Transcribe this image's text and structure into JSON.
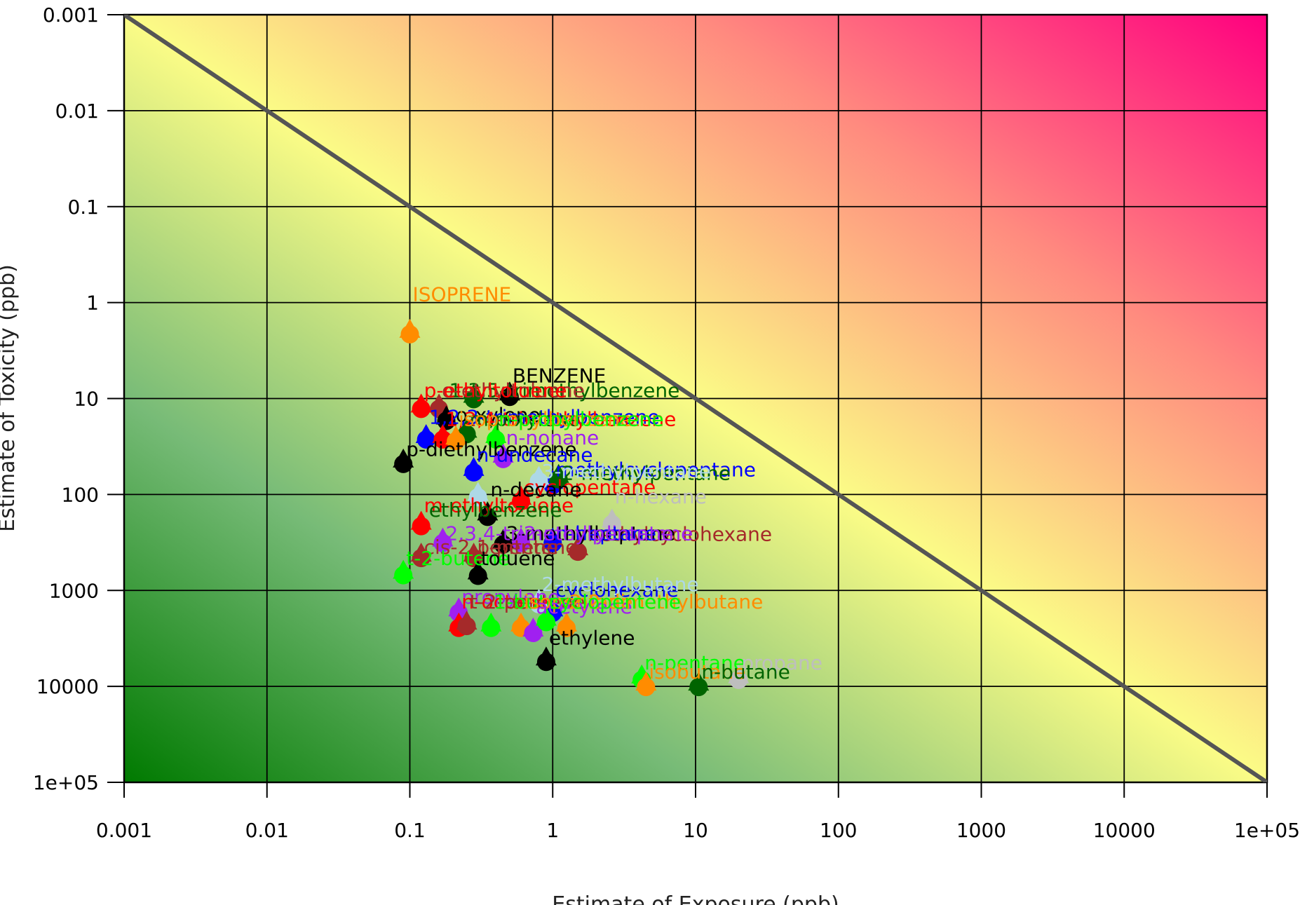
{
  "chart_data": {
    "type": "scatter",
    "xlabel": "Estimate of Exposure (ppb)",
    "ylabel": "Estimate of Toxicity (ppb)",
    "x_scale": "log",
    "y_scale": "log",
    "y_inverted": true,
    "xlim": [
      0.001,
      100000
    ],
    "ylim": [
      0.001,
      100000
    ],
    "x_ticks": [
      "0.001",
      "0.01",
      "0.1",
      "1",
      "10",
      "100",
      "1000",
      "10000",
      "1e+05"
    ],
    "y_ticks": [
      "0.001",
      "0.01",
      "0.1",
      "1",
      "10",
      "100",
      "1000",
      "10000",
      "1e+05"
    ],
    "grid": true,
    "background": "green (bottom-left) to yellow to magenta (top-right) gradient",
    "colors": {
      "low": "#007a00",
      "mid": "#fbfc86",
      "high": "#ff007f",
      "reference_line": "#555555"
    },
    "reference_line": {
      "from": [
        0.001,
        0.001
      ],
      "to": [
        100000,
        100000
      ]
    },
    "points": [
      {
        "label": "ISOPRENE",
        "x": 0.1,
        "y": 2.0,
        "color": "#ff8c00"
      },
      {
        "label": "BENZENE",
        "x": 0.5,
        "y": 9.0,
        "color": "#000000"
      },
      {
        "label": "1,3,5-trimethylbenzene",
        "x": 0.28,
        "y": 9.5,
        "color": "#006400"
      },
      {
        "label": "o-ethyltoluene",
        "x": 0.16,
        "y": 12.0,
        "color": "#a52a2a"
      },
      {
        "label": "p-ethyltoluene",
        "x": 0.12,
        "y": 12.0,
        "color": "#ff0000"
      },
      {
        "label": "o-xylene",
        "x": 0.18,
        "y": 16.0,
        "color": "#000000"
      },
      {
        "label": "1,2,3-trimethylbenzene",
        "x": 0.13,
        "y": 25.0,
        "color": "#0000ff"
      },
      {
        "label": "1,2,4-trimethylbenzene",
        "x": 0.17,
        "y": 25.0,
        "color": "#ff0000"
      },
      {
        "label": "m,p-xylene",
        "x": 0.25,
        "y": 22.0,
        "color": "#006400"
      },
      {
        "label": "isopropylbenzene",
        "x": 0.21,
        "y": 26.0,
        "color": "#ff8c00"
      },
      {
        "label": "n-propylbenzene",
        "x": 0.4,
        "y": 25.0,
        "color": "#00ff00"
      },
      {
        "label": "n-nonane",
        "x": 0.45,
        "y": 40.0,
        "color": "#a020f0"
      },
      {
        "label": "p-diethylbenzene",
        "x": 0.09,
        "y": 45.0,
        "color": "#000000"
      },
      {
        "label": "n-undecane",
        "x": 0.28,
        "y": 55.0,
        "color": "#0000ff"
      },
      {
        "label": "methylcyclopentane",
        "x": 1.0,
        "y": 75.0,
        "color": "#0000ff"
      },
      {
        "label": "2-methylpentane",
        "x": 1.1,
        "y": 65.0,
        "color": "#006400"
      },
      {
        "label": "3-methylpentane",
        "x": 0.8,
        "y": 68.0,
        "color": "#add8e6"
      },
      {
        "label": "cyclopentane",
        "x": 0.6,
        "y": 110.0,
        "color": "#ff0000"
      },
      {
        "label": "n-decane",
        "x": 0.3,
        "y": 100.0,
        "color": "#add8e6"
      },
      {
        "label": "n-hexane",
        "x": 2.6,
        "y": 190.0,
        "color": "#bebebe"
      },
      {
        "label": "m-ethyltoluene",
        "x": 0.12,
        "y": 200.0,
        "color": "#ff0000"
      },
      {
        "label": "ethylbenzene",
        "x": 0.35,
        "y": 160.0,
        "color": "#000000"
      },
      {
        "label": "methylcyclohexane",
        "x": 1.5,
        "y": 370.0,
        "color": "#a52a2a"
      },
      {
        "label": "2-methylheptane",
        "x": 0.6,
        "y": 300.0,
        "color": "#a020f0"
      },
      {
        "label": "3-methylheptane",
        "x": 0.45,
        "y": 310.0,
        "color": "#000000"
      },
      {
        "label": "n-heptane",
        "x": 1.0,
        "y": 300.0,
        "color": "#0000ff"
      },
      {
        "label": "2,3,4-trimethylpentane",
        "x": 0.17,
        "y": 300.0,
        "color": "#a020f0"
      },
      {
        "label": "cis-2-pentene",
        "x": 0.12,
        "y": 430.0,
        "color": "#a52a2a"
      },
      {
        "label": "1-pentene",
        "x": 0.28,
        "y": 430.0,
        "color": "#a52a2a"
      },
      {
        "label": "t-2-butene",
        "x": 0.09,
        "y": 650.0,
        "color": "#00ff00"
      },
      {
        "label": "toluene",
        "x": 0.3,
        "y": 660.0,
        "color": "#000000"
      },
      {
        "label": "propylene",
        "x": 0.22,
        "y": 1600.0,
        "color": "#a020f0"
      },
      {
        "label": "cyclohexane",
        "x": 1.0,
        "y": 1600.0,
        "color": "#0000ff"
      },
      {
        "label": "2-methylbutane",
        "x": 0.8,
        "y": 1300.0,
        "color": "#add8e6"
      },
      {
        "label": "n-octane",
        "x": 0.22,
        "y": 2300.0,
        "color": "#ff0000"
      },
      {
        "label": "t-2-pentene",
        "x": 0.25,
        "y": 2200.0,
        "color": "#a52a2a"
      },
      {
        "label": "1-butene",
        "x": 0.37,
        "y": 2300.0,
        "color": "#00ff00"
      },
      {
        "label": "isopentane",
        "x": 0.6,
        "y": 2300.0,
        "color": "#ff8c00"
      },
      {
        "label": "acetylene",
        "x": 0.73,
        "y": 2600.0,
        "color": "#a020f0"
      },
      {
        "label": "2,2-dimethylbutane",
        "x": 1.25,
        "y": 2300.0,
        "color": "#ff8c00"
      },
      {
        "label": "cyclopentane_2",
        "x": 0.9,
        "y": 2000.0,
        "color": "#00ff00"
      },
      {
        "label": "ethylene",
        "x": 0.9,
        "y": 5200.0,
        "color": "#000000"
      },
      {
        "label": "n-pentane",
        "x": 4.2,
        "y": 8000.0,
        "color": "#00ff00"
      },
      {
        "label": "propane",
        "x": 20.0,
        "y": 8000.0,
        "color": "#bebebe"
      },
      {
        "label": "isobutane",
        "x": 4.5,
        "y": 9500.0,
        "color": "#ff8c00"
      },
      {
        "label": "n-butane",
        "x": 10.5,
        "y": 9500.0,
        "color": "#006400"
      }
    ],
    "label_texts": [
      {
        "text": "ISOPRENE",
        "x": 0.1,
        "y": 1.0,
        "color": "#ff8c00"
      },
      {
        "text": "BENZENE",
        "x": 0.5,
        "y": 7.0,
        "color": "#000000"
      },
      {
        "text": "1,3,5-trimethylbenzene",
        "x": 0.18,
        "y": 10.0,
        "color": "#006400"
      },
      {
        "text": "o-ethyltoluene",
        "x": 0.16,
        "y": 10.0,
        "color": "#a52a2a"
      },
      {
        "text": "p-ethyltoluene",
        "x": 0.12,
        "y": 10.0,
        "color": "#ff0000"
      },
      {
        "text": "o-xylene",
        "x": 0.2,
        "y": 18.0,
        "color": "#000000"
      },
      {
        "text": "1,2,3-trimethylbenzene",
        "x": 0.13,
        "y": 19.0,
        "color": "#0000ff"
      },
      {
        "text": "1,2,4-trimethylbenzene",
        "x": 0.17,
        "y": 20.0,
        "color": "#ff0000"
      },
      {
        "text": "m,p-xylene",
        "x": 0.25,
        "y": 20.0,
        "color": "#006400"
      },
      {
        "text": "isopropylbenzene",
        "x": 0.21,
        "y": 20.0,
        "color": "#ff8c00"
      },
      {
        "text": "n-propylbenzene",
        "x": 0.4,
        "y": 20.0,
        "color": "#00ff00"
      },
      {
        "text": "n-nonane",
        "x": 0.45,
        "y": 31.0,
        "color": "#a020f0"
      },
      {
        "text": "p-diethylbenzene",
        "x": 0.09,
        "y": 41.0,
        "color": "#000000"
      },
      {
        "text": "n-undecane",
        "x": 0.28,
        "y": 47.0,
        "color": "#0000ff"
      },
      {
        "text": "methylcyclopentane",
        "x": 1.0,
        "y": 67.0,
        "color": "#0000ff"
      },
      {
        "text": "2-methylpentane",
        "x": 1.1,
        "y": 73.0,
        "color": "#006400"
      },
      {
        "text": "3-methylpentane",
        "x": 0.8,
        "y": 70.0,
        "color": "#add8e6"
      },
      {
        "text": "cyclopentane",
        "x": 0.6,
        "y": 102.0,
        "color": "#ff0000"
      },
      {
        "text": "n-decane",
        "x": 0.35,
        "y": 108.0,
        "color": "#000000"
      },
      {
        "text": "n-hexane",
        "x": 2.6,
        "y": 128.0,
        "color": "#bebebe"
      },
      {
        "text": "m-ethyltoluene",
        "x": 0.12,
        "y": 158.0,
        "color": "#ff0000"
      },
      {
        "text": "ethylbenzene",
        "x": 0.13,
        "y": 176.0,
        "color": "#006400"
      },
      {
        "text": "methylcyclohexane",
        "x": 1.5,
        "y": 315.0,
        "color": "#a52a2a"
      },
      {
        "text": "2-methylheptane",
        "x": 0.6,
        "y": 310.0,
        "color": "#a020f0"
      },
      {
        "text": "3-methylheptane",
        "x": 0.45,
        "y": 310.0,
        "color": "#000000"
      },
      {
        "text": "n-heptane",
        "x": 1.0,
        "y": 310.0,
        "color": "#0000ff"
      },
      {
        "text": "2,3,4-trimethylpentane",
        "x": 0.17,
        "y": 310.0,
        "color": "#a020f0"
      },
      {
        "text": "cis-2-pentene",
        "x": 0.12,
        "y": 430.0,
        "color": "#a52a2a"
      },
      {
        "text": "1-pentene",
        "x": 0.28,
        "y": 430.0,
        "color": "#a52a2a"
      },
      {
        "text": "t-2-butene",
        "x": 0.09,
        "y": 560.0,
        "color": "#00ff00"
      },
      {
        "text": "toluene",
        "x": 0.3,
        "y": 560.0,
        "color": "#000000"
      },
      {
        "text": "propylene",
        "x": 0.22,
        "y": 1420.0,
        "color": "#a020f0"
      },
      {
        "text": "cyclohexane",
        "x": 1.0,
        "y": 1200.0,
        "color": "#0000ff"
      },
      {
        "text": "2-methylbutane",
        "x": 0.8,
        "y": 1050.0,
        "color": "#add8e6"
      },
      {
        "text": "n-octane",
        "x": 0.22,
        "y": 1600.0,
        "color": "#ff0000"
      },
      {
        "text": "t-2-pentene",
        "x": 0.25,
        "y": 1600.0,
        "color": "#a52a2a"
      },
      {
        "text": "1-butene",
        "x": 0.37,
        "y": 1600.0,
        "color": "#00ff00"
      },
      {
        "text": "isopentane",
        "x": 0.6,
        "y": 1600.0,
        "color": "#ff8c00"
      },
      {
        "text": "acetylene",
        "x": 0.73,
        "y": 1800.0,
        "color": "#a020f0"
      },
      {
        "text": "2,2-dimethylbutane",
        "x": 1.25,
        "y": 1600.0,
        "color": "#ff8c00"
      },
      {
        "text": "cyclopentene",
        "x": 0.9,
        "y": 1600.0,
        "color": "#00ff00"
      },
      {
        "text": "ethylene",
        "x": 0.9,
        "y": 3800.0,
        "color": "#000000"
      },
      {
        "text": "n-pentane",
        "x": 4.2,
        "y": 6900.0,
        "color": "#00ff00"
      },
      {
        "text": "propane",
        "x": 20.0,
        "y": 6900.0,
        "color": "#bebebe"
      },
      {
        "text": "isobutane",
        "x": 4.5,
        "y": 8600.0,
        "color": "#ff8c00"
      },
      {
        "text": "n-butane",
        "x": 10.5,
        "y": 8600.0,
        "color": "#006400"
      }
    ]
  }
}
